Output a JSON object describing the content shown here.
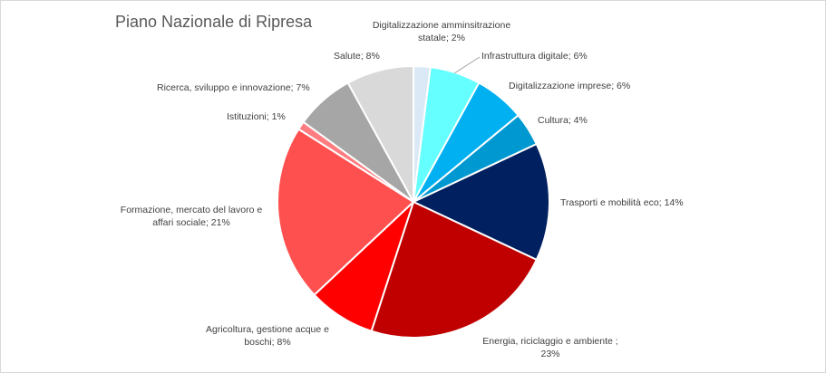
{
  "chart_data": {
    "type": "pie",
    "title": "Piano Nazionale di Ripresa",
    "legend": "none",
    "data_labels": "category-and-value",
    "slices": [
      {
        "label": "Digitalizzazione amminsitrazione statale",
        "label_lines": [
          "Digitalizzazione amminsitrazione",
          "statale; 2%"
        ],
        "value": 2,
        "color": "#dbe9f6"
      },
      {
        "label": "Infrastruttura digitale",
        "label_lines": [
          "Infrastruttura digitale; 6%"
        ],
        "value": 6,
        "color": "#66ffff"
      },
      {
        "label": "Digitalizzazione imprese",
        "label_lines": [
          "Digitalizzazione imprese; 6%"
        ],
        "value": 6,
        "color": "#00b0f0"
      },
      {
        "label": "Cultura",
        "label_lines": [
          "Cultura; 4%"
        ],
        "value": 4,
        "color": "#0098d0"
      },
      {
        "label": "Trasporti e mobilità eco",
        "label_lines": [
          "Trasporti e mobilità eco; 14%"
        ],
        "value": 14,
        "color": "#002060"
      },
      {
        "label": "Energia, riciclaggio e ambiente",
        "label_lines": [
          "Energia, riciclaggio e ambiente ;",
          "23%"
        ],
        "value": 23,
        "color": "#c00000"
      },
      {
        "label": "Agricoltura, gestione acque e boschi",
        "label_lines": [
          "Agricoltura, gestione acque e",
          "boschi; 8%"
        ],
        "value": 8,
        "color": "#ff0000"
      },
      {
        "label": "Formazione, mercato del lavoro e affari sociali",
        "label_lines": [
          "Formazione, mercato del lavoro e",
          "affari sociale; 21%"
        ],
        "value": 21,
        "color": "#ff5050"
      },
      {
        "label": "Istituzioni",
        "label_lines": [
          "Istituzioni; 1%"
        ],
        "value": 1,
        "color": "#ff7c80"
      },
      {
        "label": "Ricerca, sviluppo e innovazione",
        "label_lines": [
          "Ricerca, sviluppo e innovazione; 7%"
        ],
        "value": 7,
        "color": "#a6a6a6"
      },
      {
        "label": "Salute",
        "label_lines": [
          "Salute; 8%"
        ],
        "value": 8,
        "color": "#d9d9d9"
      }
    ]
  }
}
